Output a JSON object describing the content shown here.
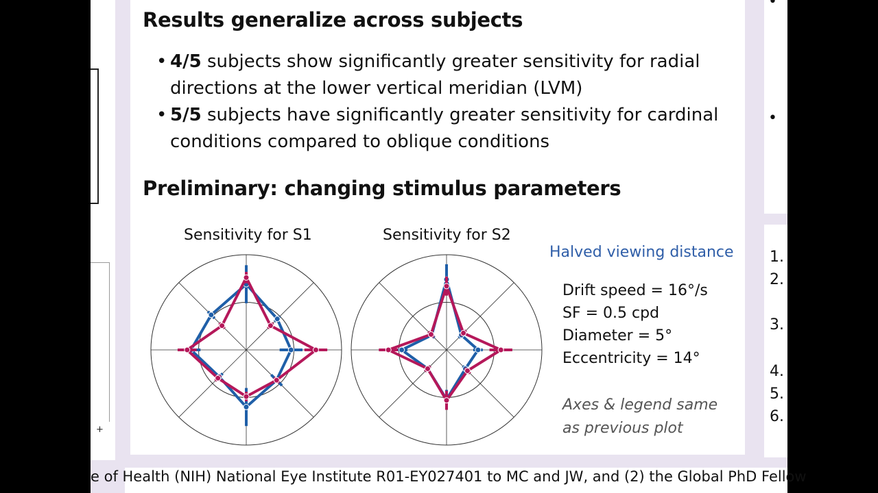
{
  "slide": {
    "title1": "Results generalize across subjects",
    "bullets": [
      {
        "bold": "4/5",
        "text": " subjects show significantly greater sensitivity for radial directions at the lower vertical meridian (LVM)"
      },
      {
        "bold": "5/5",
        "text": " subjects have significantly greater sensitivity for cardinal conditions compared to oblique conditions"
      }
    ],
    "title2": "Preliminary: changing stimulus parameters",
    "chart_titles": [
      "Sensitivity for S1",
      "Sensitivity for S2"
    ],
    "condition_label": "Halved viewing distance",
    "params": [
      "Drift speed = 16°/s",
      "SF = 0.5 cpd",
      "Diameter = 5°",
      "Eccentricity = 14°"
    ],
    "note": [
      "Axes & legend same",
      "as previous plot"
    ],
    "bullet_symbol": "•"
  },
  "footer": {
    "text": "e of Health (NIH) National Eye Institute R01-EY027401 to MC and JW, and (2) the Global PhD Fellow"
  },
  "right_list": [
    "1.",
    "2.",
    "3.",
    "4.",
    "5.",
    "6."
  ],
  "colors": {
    "blue": "#1f5fa8",
    "magenta": "#b5185a",
    "accent": "#2f5ea8",
    "panel": "#e9e3f0"
  },
  "chart_data": [
    {
      "type": "radar",
      "title": "Sensitivity for S1",
      "angles_deg": [
        0,
        45,
        90,
        135,
        180,
        225,
        270,
        315
      ],
      "series": [
        {
          "values": [
            0.47,
            0.46,
            0.69,
            0.52,
            0.58,
            0.4,
            0.6,
            0.45
          ],
          "err": [
            0.12,
            0.04,
            0.2,
            0.05,
            0.1,
            0.05,
            0.2,
            0.08
          ]
        },
        {
          "values": [
            0.73,
            0.36,
            0.76,
            0.36,
            0.62,
            0.42,
            0.49,
            0.45
          ],
          "err": [
            0.12,
            0.04,
            0.06,
            0.04,
            0.1,
            0.04,
            0.05,
            0.04
          ]
        }
      ]
    },
    {
      "type": "radar",
      "title": "Sensitivity for S2",
      "angles_deg": [
        0,
        45,
        90,
        135,
        180,
        225,
        270,
        315
      ],
      "series": [
        {
          "values": [
            0.33,
            0.22,
            0.74,
            0.22,
            0.47,
            0.28,
            0.52,
            0.28
          ],
          "err": [
            0.05,
            0.04,
            0.16,
            0.04,
            0.06,
            0.04,
            0.1,
            0.04
          ]
        },
        {
          "values": [
            0.57,
            0.25,
            0.67,
            0.23,
            0.61,
            0.28,
            0.53,
            0.31
          ],
          "err": [
            0.12,
            0.04,
            0.1,
            0.04,
            0.1,
            0.04,
            0.1,
            0.04
          ]
        }
      ]
    }
  ]
}
